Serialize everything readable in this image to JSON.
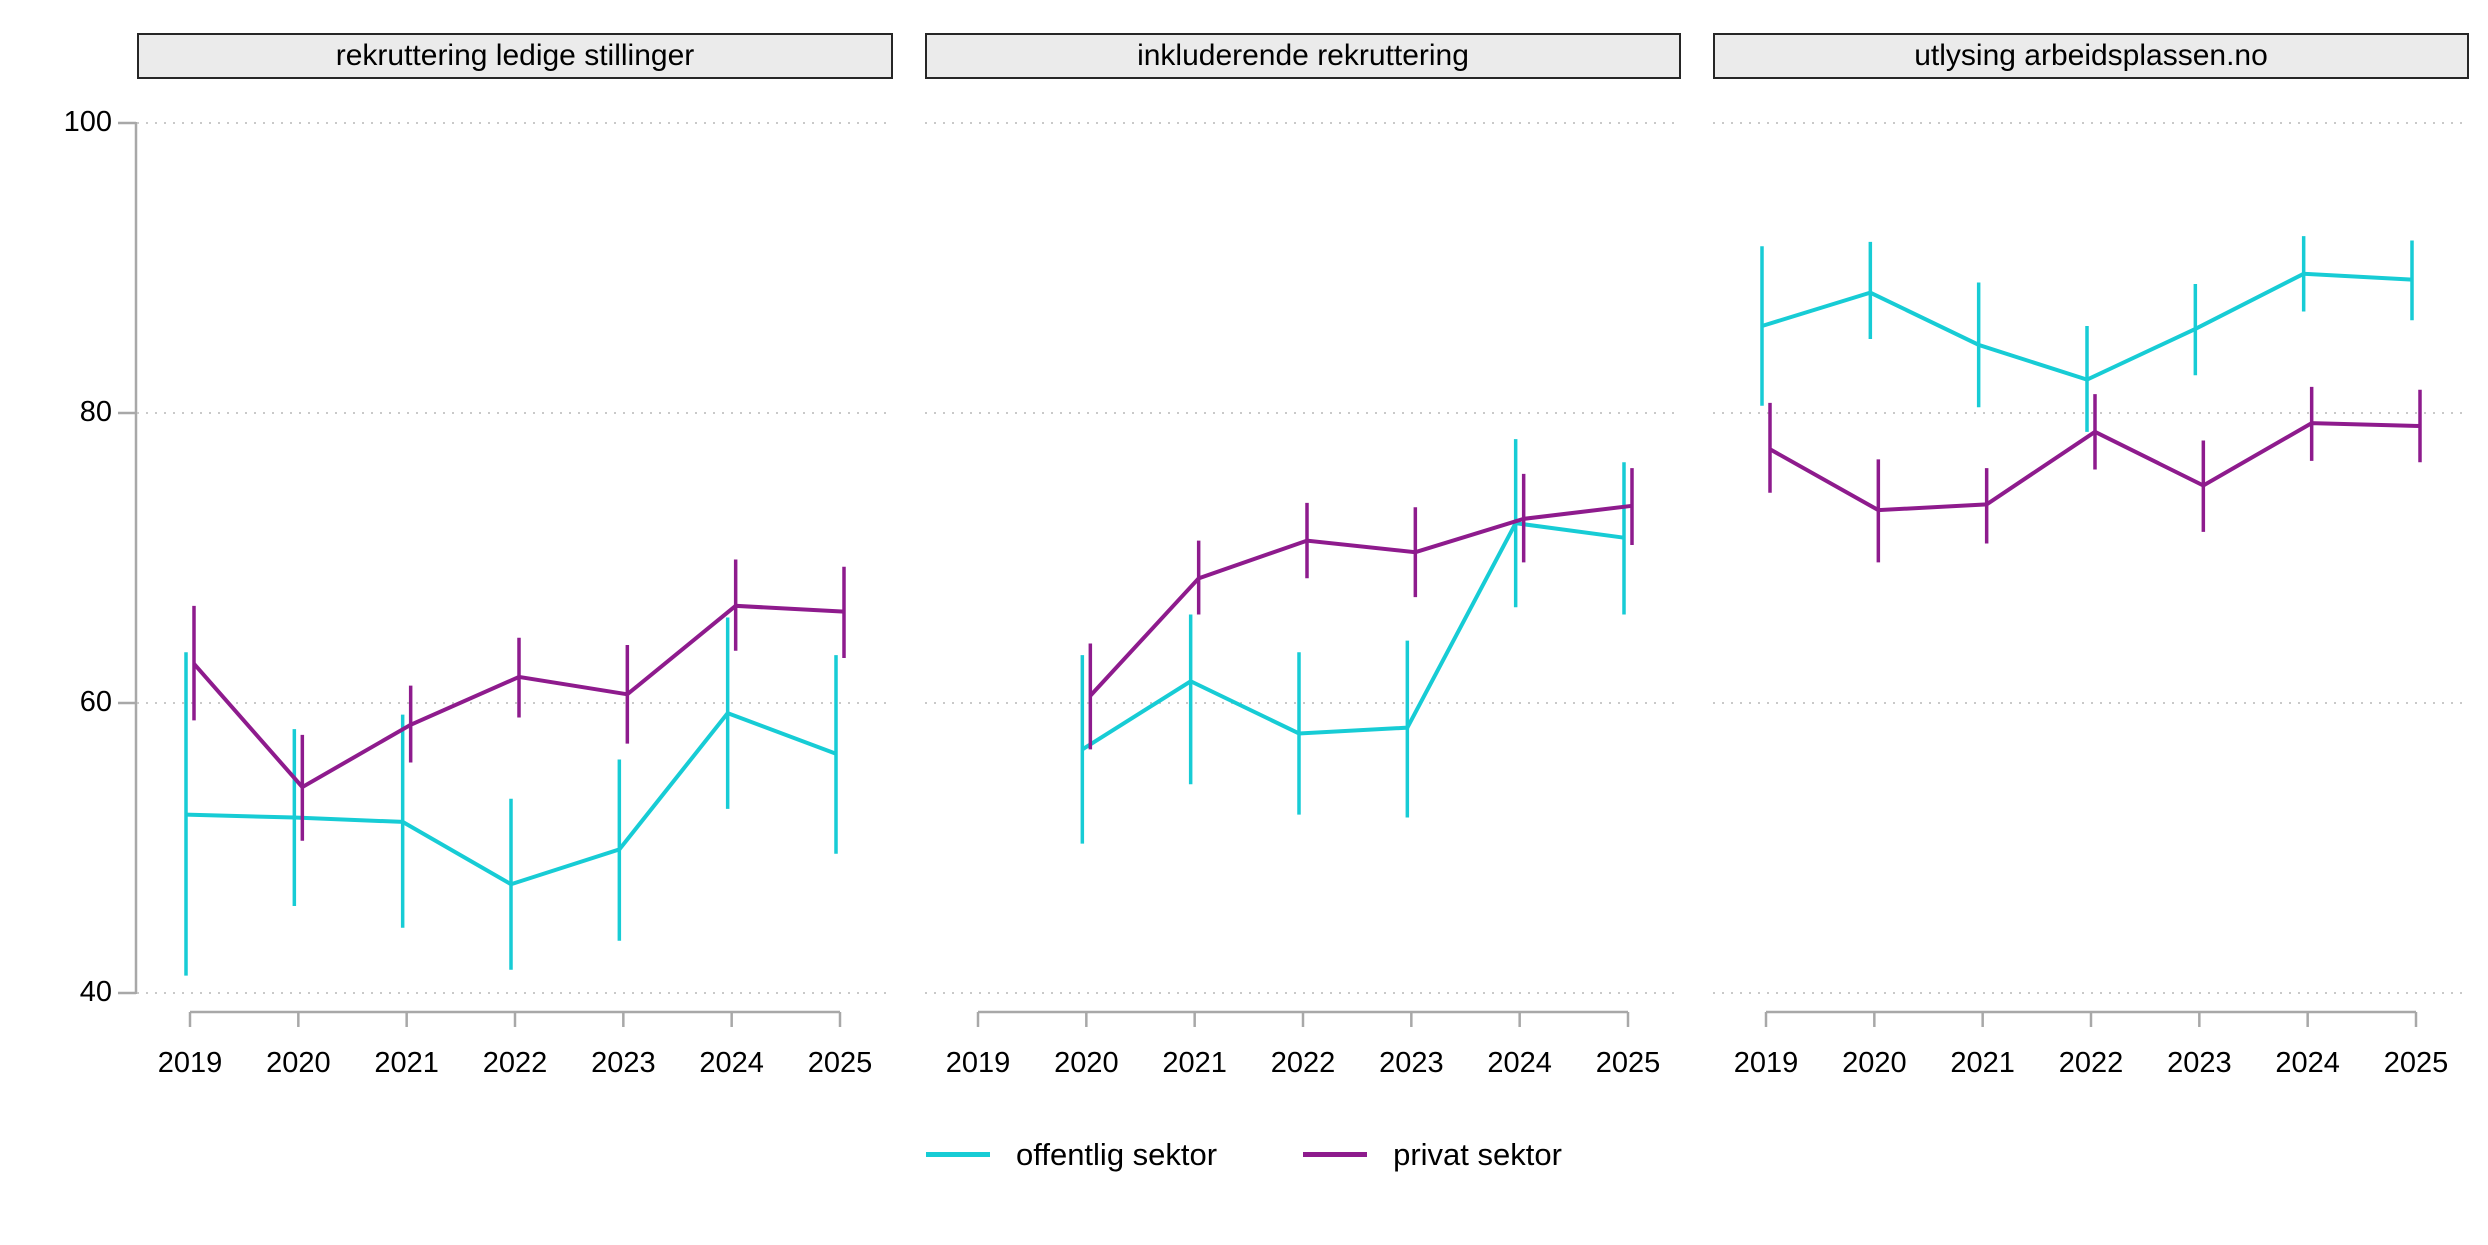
{
  "chart_data": {
    "type": "line",
    "title": "",
    "xlabel": "",
    "ylabel": "",
    "categories": [
      "2019",
      "2020",
      "2021",
      "2022",
      "2023",
      "2024",
      "2025"
    ],
    "y_ticks": [
      100,
      80,
      60,
      40
    ],
    "ylim": [
      40,
      100
    ],
    "grid": "horizontal dotted gridlines at y ticks",
    "legend_position": "bottom center",
    "error_bars": "vertical confidence intervals, no caps",
    "axis_color": "#a8a8a8",
    "grid_color": "#c9c9c9",
    "panel_header_bg": "#ebebeb",
    "panels": [
      {
        "title": "rekruttering ledige stillinger",
        "series": [
          {
            "name": "offentlig sektor",
            "color": "#17ccd5",
            "values": [
              52.3,
              52.1,
              51.8,
              47.5,
              49.9,
              59.3,
              56.5
            ],
            "ci_low": [
              41.2,
              46.0,
              44.5,
              41.6,
              43.6,
              52.7,
              49.6
            ],
            "ci_high": [
              63.5,
              58.2,
              59.2,
              53.4,
              56.1,
              65.9,
              63.3
            ]
          },
          {
            "name": "privat sektor",
            "color": "#8e1b8d",
            "values": [
              62.7,
              54.2,
              58.5,
              61.8,
              60.6,
              66.7,
              66.3
            ],
            "ci_low": [
              58.8,
              50.5,
              55.9,
              59.0,
              57.2,
              63.6,
              63.1
            ],
            "ci_high": [
              66.7,
              57.8,
              61.2,
              64.5,
              64.0,
              69.9,
              69.4
            ]
          }
        ]
      },
      {
        "title": "inkluderende rekruttering",
        "series": [
          {
            "name": "offentlig sektor",
            "color": "#17ccd5",
            "values": [
              null,
              56.8,
              61.5,
              57.9,
              58.3,
              72.4,
              71.4
            ],
            "ci_low": [
              null,
              50.3,
              54.4,
              52.3,
              52.1,
              66.6,
              66.1
            ],
            "ci_high": [
              null,
              63.3,
              66.1,
              63.5,
              64.3,
              78.2,
              76.6
            ]
          },
          {
            "name": "privat sektor",
            "color": "#8e1b8d",
            "values": [
              null,
              60.5,
              68.6,
              71.2,
              70.4,
              72.7,
              73.6
            ],
            "ci_low": [
              null,
              56.8,
              66.1,
              68.6,
              67.3,
              69.7,
              70.9
            ],
            "ci_high": [
              null,
              64.1,
              71.2,
              73.8,
              73.5,
              75.8,
              76.2
            ]
          }
        ]
      },
      {
        "title": "utlysing arbeidsplassen.no",
        "series": [
          {
            "name": "offentlig sektor",
            "color": "#17ccd5",
            "values": [
              86.0,
              88.3,
              84.7,
              82.3,
              85.8,
              89.6,
              89.2
            ],
            "ci_low": [
              80.5,
              85.1,
              80.4,
              78.7,
              82.6,
              87.0,
              86.4
            ],
            "ci_high": [
              91.5,
              91.8,
              89.0,
              86.0,
              88.9,
              92.2,
              91.9
            ]
          },
          {
            "name": "privat sektor",
            "color": "#8e1b8d",
            "values": [
              77.5,
              73.3,
              73.7,
              78.7,
              75.0,
              79.3,
              79.1
            ],
            "ci_low": [
              74.5,
              69.7,
              71.0,
              76.1,
              71.8,
              76.7,
              76.6
            ],
            "ci_high": [
              80.7,
              76.8,
              76.2,
              81.3,
              78.1,
              81.8,
              81.6
            ]
          }
        ]
      }
    ]
  },
  "legend": {
    "items": [
      {
        "label": "offentlig sektor",
        "color": "#17ccd5"
      },
      {
        "label": "privat sektor",
        "color": "#8e1b8d"
      }
    ]
  }
}
